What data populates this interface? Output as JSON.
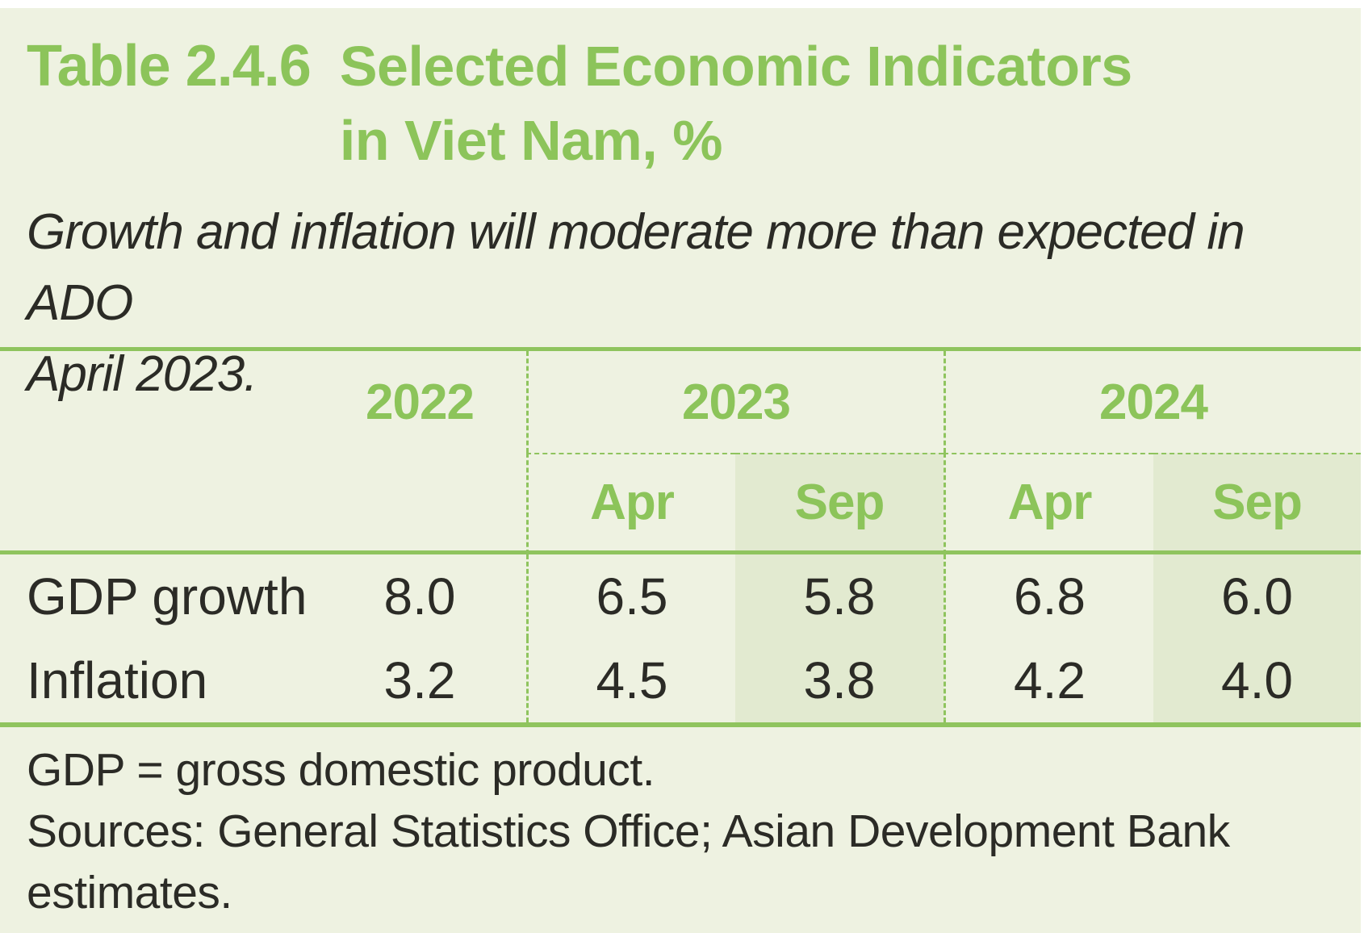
{
  "title": {
    "label": "Table 2.4.6",
    "line1": "Selected Economic Indicators",
    "line2": "in Viet Nam, %"
  },
  "subtitle": {
    "line1": "Growth and inflation will moderate more than expected in ADO",
    "line2": "April 2023."
  },
  "table": {
    "year_headers": [
      "2022",
      "2023",
      "2024"
    ],
    "sub_headers": [
      "Apr",
      "Sep",
      "Apr",
      "Sep"
    ],
    "rows": [
      {
        "label": "GDP growth",
        "values": [
          "8.0",
          "6.5",
          "5.8",
          "6.8",
          "6.0"
        ]
      },
      {
        "label": "Inflation",
        "values": [
          "3.2",
          "4.5",
          "3.8",
          "4.2",
          "4.0"
        ]
      }
    ]
  },
  "footnotes": {
    "note": "GDP = gross domestic product.",
    "sources_line1": "Sources: General Statistics Office; Asian Development Bank",
    "sources_line2": "estimates."
  },
  "colors": {
    "accent_green": "#8cc45a",
    "line_green": "#8fc45e",
    "panel_background": "#eef2e1",
    "shaded_column": "#e2ead0",
    "text_dark": "#2b2b26"
  },
  "chart_data": {
    "type": "table",
    "title": "Table 2.4.6 Selected Economic Indicators in Viet Nam, %",
    "subtitle": "Growth and inflation will moderate more than expected in ADO April 2023.",
    "column_groups": [
      "2022",
      "2023",
      "2024"
    ],
    "columns": [
      "2022",
      "2023 Apr",
      "2023 Sep",
      "2024 Apr",
      "2024 Sep"
    ],
    "rows": [
      {
        "label": "GDP growth",
        "values": [
          8.0,
          6.5,
          5.8,
          6.8,
          6.0
        ]
      },
      {
        "label": "Inflation",
        "values": [
          3.2,
          4.5,
          3.8,
          4.2,
          4.0
        ]
      }
    ],
    "notes": [
      "GDP = gross domestic product.",
      "Sources: General Statistics Office; Asian Development Bank estimates."
    ]
  }
}
